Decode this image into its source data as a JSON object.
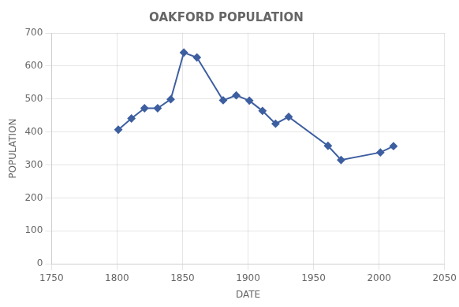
{
  "chart_data": {
    "type": "line",
    "title": "OAKFORD POPULATION",
    "xlabel": "DATE",
    "ylabel": "POPULATION",
    "x": [
      1801,
      1811,
      1821,
      1831,
      1841,
      1851,
      1861,
      1881,
      1891,
      1901,
      1911,
      1921,
      1931,
      1961,
      1971,
      2001,
      2011
    ],
    "values": [
      407,
      441,
      472,
      472,
      499,
      641,
      626,
      496,
      511,
      495,
      464,
      425,
      446,
      358,
      315,
      338,
      357
    ],
    "color": "#3D5FA0",
    "marker": "diamond",
    "xlim": [
      1750,
      2050
    ],
    "ylim": [
      0,
      700
    ],
    "xticks": [
      1750,
      1800,
      1850,
      1900,
      1950,
      2000,
      2050
    ],
    "yticks": [
      0,
      100,
      200,
      300,
      400,
      500,
      600,
      700
    ],
    "grid": true
  }
}
